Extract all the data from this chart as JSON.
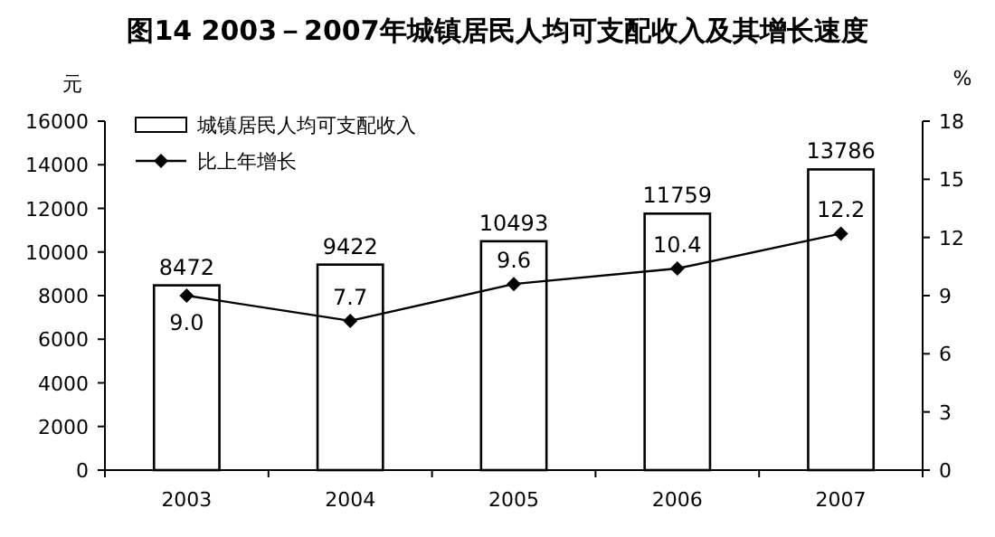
{
  "chart_data": {
    "type": "bar",
    "title": "图14 2003－2007年城镇居民人均可支配收入及其增长速度",
    "ylabel": "元",
    "y2label": "%",
    "categories": [
      "2003",
      "2004",
      "2005",
      "2006",
      "2007"
    ],
    "series": [
      {
        "name": "城镇居民人均可支配收入",
        "color": "#ffffff",
        "values": [
          8472,
          9422,
          10493,
          11759,
          13786
        ]
      },
      {
        "name": "比上年增长",
        "type": "line",
        "axis": "y2",
        "color": "#000000",
        "values": [
          9.0,
          7.7,
          9.6,
          10.4,
          12.2
        ],
        "value_labels": [
          "9.0",
          "7.7",
          "9.6",
          "10.4",
          "12.2"
        ]
      }
    ],
    "ylim": [
      0,
      16000
    ],
    "yticks": [
      0,
      2000,
      4000,
      6000,
      8000,
      10000,
      12000,
      14000,
      16000
    ],
    "y2lim": [
      0,
      18
    ],
    "y2ticks": [
      0,
      3,
      6,
      9,
      12,
      15,
      18
    ],
    "data_labels": true,
    "legend": "top left",
    "marker": "diamond"
  }
}
